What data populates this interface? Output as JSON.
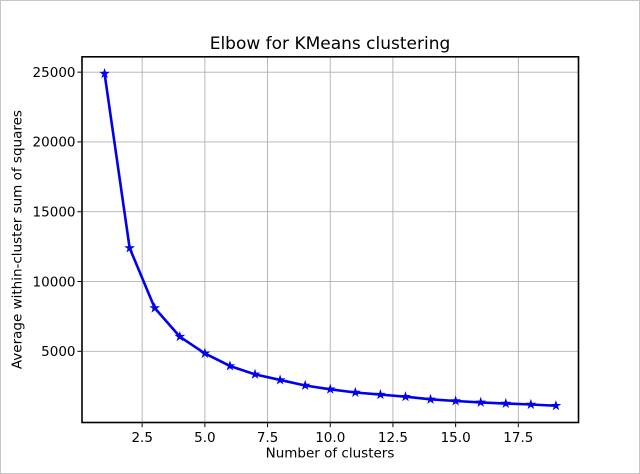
{
  "figure": {
    "background": "#ffffff",
    "frame_border_color": "#c6c6c6"
  },
  "chart_data": {
    "type": "line",
    "title": "Elbow for KMeans clustering",
    "xlabel": "Number of clusters",
    "ylabel": "Average within-cluster sum of squares",
    "x": [
      1,
      2,
      3,
      4,
      5,
      6,
      7,
      8,
      9,
      10,
      11,
      12,
      13,
      14,
      15,
      16,
      17,
      18,
      19
    ],
    "y": [
      24900,
      12400,
      8100,
      6050,
      4850,
      3950,
      3350,
      2950,
      2550,
      2280,
      2050,
      1900,
      1750,
      1560,
      1440,
      1340,
      1260,
      1190,
      1100
    ],
    "xlim": [
      0.1,
      19.9
    ],
    "ylim": [
      -100,
      26100
    ],
    "xticks": [
      2.5,
      5.0,
      7.5,
      10.0,
      12.5,
      15.0,
      17.5
    ],
    "xtick_labels": [
      "2.5",
      "5.0",
      "7.5",
      "10.0",
      "12.5",
      "15.0",
      "17.5"
    ],
    "yticks": [
      5000,
      10000,
      15000,
      20000,
      25000
    ],
    "ytick_labels": [
      "5000",
      "10000",
      "15000",
      "20000",
      "25000"
    ],
    "grid": true,
    "grid_color": "#b0b0b0",
    "spine_color": "#000000",
    "text_color": "#000000",
    "line_color": "#0000ee",
    "marker": "star",
    "legend_position": "none"
  }
}
